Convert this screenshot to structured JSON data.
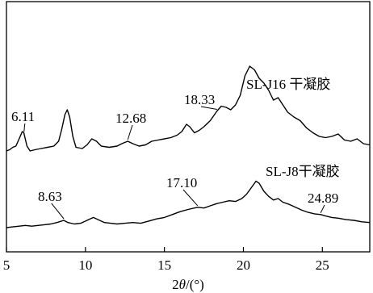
{
  "chart_data": {
    "type": "line",
    "title": "",
    "xlabel": "2θ/(°)",
    "xlabel_parts": {
      "prefix": "2",
      "italic": "θ",
      "suffix": "/(°)"
    },
    "ylabel": "",
    "xlim": [
      5,
      28
    ],
    "x_ticks": [
      5,
      10,
      15,
      20,
      25
    ],
    "y_ticks_shown": false,
    "grid": false,
    "legend": "none",
    "series": [
      {
        "name": "SL-J16 干凝胶",
        "points": [
          [
            5.0,
            0.3
          ],
          [
            5.2,
            0.31
          ],
          [
            5.4,
            0.33
          ],
          [
            5.6,
            0.34
          ],
          [
            5.8,
            0.4
          ],
          [
            6.0,
            0.46
          ],
          [
            6.1,
            0.45
          ],
          [
            6.3,
            0.34
          ],
          [
            6.5,
            0.3
          ],
          [
            6.8,
            0.31
          ],
          [
            7.2,
            0.32
          ],
          [
            7.6,
            0.33
          ],
          [
            8.0,
            0.34
          ],
          [
            8.3,
            0.38
          ],
          [
            8.5,
            0.48
          ],
          [
            8.7,
            0.6
          ],
          [
            8.85,
            0.64
          ],
          [
            9.0,
            0.58
          ],
          [
            9.2,
            0.42
          ],
          [
            9.4,
            0.33
          ],
          [
            9.8,
            0.32
          ],
          [
            10.1,
            0.35
          ],
          [
            10.4,
            0.4
          ],
          [
            10.7,
            0.38
          ],
          [
            11.0,
            0.34
          ],
          [
            11.5,
            0.33
          ],
          [
            12.0,
            0.34
          ],
          [
            12.3,
            0.36
          ],
          [
            12.68,
            0.38
          ],
          [
            13.0,
            0.36
          ],
          [
            13.4,
            0.34
          ],
          [
            13.8,
            0.35
          ],
          [
            14.2,
            0.38
          ],
          [
            14.6,
            0.39
          ],
          [
            15.0,
            0.4
          ],
          [
            15.4,
            0.41
          ],
          [
            15.8,
            0.43
          ],
          [
            16.1,
            0.46
          ],
          [
            16.4,
            0.52
          ],
          [
            16.6,
            0.5
          ],
          [
            16.9,
            0.45
          ],
          [
            17.2,
            0.47
          ],
          [
            17.5,
            0.5
          ],
          [
            17.9,
            0.55
          ],
          [
            18.33,
            0.63
          ],
          [
            18.6,
            0.67
          ],
          [
            18.9,
            0.66
          ],
          [
            19.2,
            0.64
          ],
          [
            19.5,
            0.68
          ],
          [
            19.8,
            0.76
          ],
          [
            20.1,
            0.92
          ],
          [
            20.4,
            1.0
          ],
          [
            20.7,
            0.97
          ],
          [
            21.0,
            0.9
          ],
          [
            21.3,
            0.86
          ],
          [
            21.6,
            0.8
          ],
          [
            21.9,
            0.72
          ],
          [
            22.2,
            0.74
          ],
          [
            22.5,
            0.68
          ],
          [
            22.8,
            0.62
          ],
          [
            23.2,
            0.58
          ],
          [
            23.6,
            0.55
          ],
          [
            24.0,
            0.49
          ],
          [
            24.4,
            0.45
          ],
          [
            24.8,
            0.42
          ],
          [
            25.2,
            0.41
          ],
          [
            25.6,
            0.42
          ],
          [
            26.0,
            0.44
          ],
          [
            26.4,
            0.39
          ],
          [
            26.8,
            0.38
          ],
          [
            27.2,
            0.4
          ],
          [
            27.6,
            0.36
          ],
          [
            28.0,
            0.35
          ]
        ]
      },
      {
        "name": "SL-J8干凝胶",
        "points": [
          [
            5.0,
            0.0
          ],
          [
            5.4,
            0.01
          ],
          [
            5.8,
            0.02
          ],
          [
            6.2,
            0.03
          ],
          [
            6.6,
            0.02
          ],
          [
            7.0,
            0.03
          ],
          [
            7.4,
            0.04
          ],
          [
            7.8,
            0.05
          ],
          [
            8.2,
            0.07
          ],
          [
            8.63,
            0.1
          ],
          [
            8.9,
            0.07
          ],
          [
            9.3,
            0.05
          ],
          [
            9.7,
            0.06
          ],
          [
            10.1,
            0.1
          ],
          [
            10.5,
            0.14
          ],
          [
            10.8,
            0.11
          ],
          [
            11.2,
            0.07
          ],
          [
            11.6,
            0.06
          ],
          [
            12.0,
            0.05
          ],
          [
            12.5,
            0.06
          ],
          [
            13.0,
            0.07
          ],
          [
            13.5,
            0.06
          ],
          [
            14.0,
            0.09
          ],
          [
            14.5,
            0.12
          ],
          [
            15.0,
            0.14
          ],
          [
            15.5,
            0.18
          ],
          [
            16.0,
            0.22
          ],
          [
            16.5,
            0.25
          ],
          [
            17.1,
            0.28
          ],
          [
            17.5,
            0.27
          ],
          [
            17.9,
            0.3
          ],
          [
            18.3,
            0.33
          ],
          [
            18.7,
            0.35
          ],
          [
            19.1,
            0.37
          ],
          [
            19.5,
            0.36
          ],
          [
            19.9,
            0.4
          ],
          [
            20.2,
            0.46
          ],
          [
            20.5,
            0.55
          ],
          [
            20.8,
            0.64
          ],
          [
            21.0,
            0.61
          ],
          [
            21.3,
            0.5
          ],
          [
            21.6,
            0.43
          ],
          [
            21.9,
            0.38
          ],
          [
            22.2,
            0.4
          ],
          [
            22.5,
            0.35
          ],
          [
            22.9,
            0.32
          ],
          [
            23.3,
            0.28
          ],
          [
            23.7,
            0.24
          ],
          [
            24.1,
            0.21
          ],
          [
            24.5,
            0.19
          ],
          [
            24.89,
            0.18
          ],
          [
            25.2,
            0.16
          ],
          [
            25.6,
            0.14
          ],
          [
            26.0,
            0.13
          ],
          [
            26.5,
            0.11
          ],
          [
            27.0,
            0.1
          ],
          [
            27.5,
            0.08
          ],
          [
            28.0,
            0.07
          ]
        ]
      }
    ],
    "annotations": [
      {
        "text": "6.11",
        "series": 0,
        "x": 6.11
      },
      {
        "text": "12.68",
        "series": 0,
        "x": 12.68
      },
      {
        "text": "18.33",
        "series": 0,
        "x": 18.33
      },
      {
        "text": "8.63",
        "series": 1,
        "x": 8.63
      },
      {
        "text": "17.10",
        "series": 1,
        "x": 17.1
      },
      {
        "text": "24.89",
        "series": 1,
        "x": 24.89
      }
    ]
  }
}
